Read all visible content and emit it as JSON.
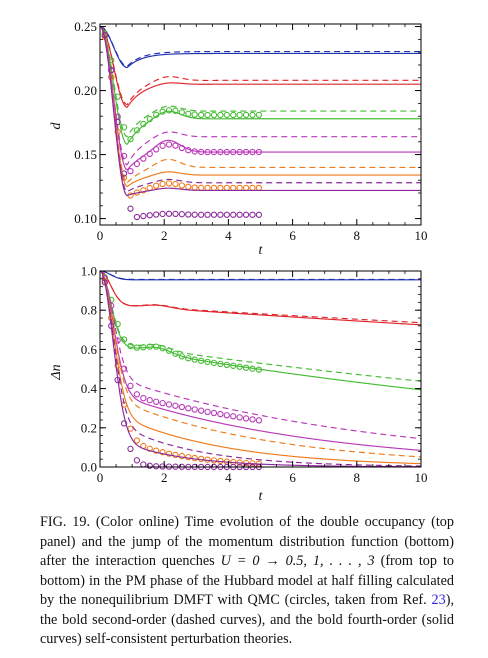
{
  "figure": {
    "caption": {
      "label": "FIG. 19.",
      "text_1": "(Color online) Time evolution of the double occupancy (top panel) and the jump of the momentum distribution function (bottom) after the interaction quenches ",
      "quench": "U = 0 → 0.5, 1, . . . , 3",
      "text_2": " (from top to bottom) in the PM phase of the Hubbard model at half filling calculated by the nonequilibrium DMFT with QMC (circles, taken from Ref. ",
      "ref": "23",
      "text_3": "), the bold second-order (dashed curves), and the bold fourth-order (solid curves) self-consistent perturbation theories."
    }
  },
  "colors": {
    "U0.5": "#1f2fb0",
    "U1": "#e0242a",
    "U1.5": "#44bb33",
    "U2": "#b838b8",
    "U2.5": "#f07a1a",
    "U3": "#8a2a9a",
    "axis": "#000000"
  },
  "chart_data": [
    {
      "type": "line",
      "panel": "top",
      "xlabel": "t",
      "ylabel": "d",
      "xlim": [
        0,
        10
      ],
      "ylim": [
        0.095,
        0.252
      ],
      "xticks": [
        0,
        2,
        4,
        6,
        8,
        10
      ],
      "xtick_labels": [
        "0",
        "2",
        "4",
        "6",
        "8",
        "10"
      ],
      "yticks": [
        0.1,
        0.15,
        0.2,
        0.25
      ],
      "ytick_labels": [
        "0.10",
        "0.15",
        "0.20",
        "0.25"
      ],
      "grid": false,
      "series": [
        {
          "color": "U0.5",
          "style": "solid",
          "start": 0.25,
          "final": 0.229,
          "dip": 0.218,
          "tmin": 0.85,
          "hump": 0
        },
        {
          "color": "U0.5",
          "style": "dashed",
          "start": 0.25,
          "final": 0.2305,
          "dip": 0.219,
          "tmin": 0.85,
          "hump": 0
        },
        {
          "color": "U1",
          "style": "solid",
          "start": 0.25,
          "final": 0.205,
          "dip": 0.187,
          "tmin": 0.85,
          "hump": 0.002
        },
        {
          "color": "U1",
          "style": "dashed",
          "start": 0.25,
          "final": 0.208,
          "dip": 0.189,
          "tmin": 0.85,
          "hump": 0.004
        },
        {
          "color": "U1.5",
          "style": "solid",
          "start": 0.25,
          "final": 0.178,
          "dip": 0.158,
          "tmin": 0.85,
          "hump": 0.007
        },
        {
          "color": "U1.5",
          "style": "dashed",
          "start": 0.25,
          "final": 0.184,
          "dip": 0.164,
          "tmin": 0.85,
          "hump": 0.005
        },
        {
          "color": "U1.5",
          "style": "circles",
          "start": 0.25,
          "final": 0.181,
          "dip": 0.162,
          "tmin": 0.95,
          "hump": 0.005,
          "tmax": 5.0
        },
        {
          "color": "U2",
          "style": "solid",
          "start": 0.25,
          "final": 0.152,
          "dip": 0.138,
          "tmin": 0.85,
          "hump": 0.01
        },
        {
          "color": "U2",
          "style": "dashed",
          "start": 0.25,
          "final": 0.164,
          "dip": 0.142,
          "tmin": 0.85,
          "hump": 0.005
        },
        {
          "color": "U2",
          "style": "circles",
          "start": 0.25,
          "final": 0.152,
          "dip": 0.137,
          "tmin": 0.95,
          "hump": 0.007,
          "tmax": 5.0
        },
        {
          "color": "U2.5",
          "style": "solid",
          "start": 0.25,
          "final": 0.134,
          "dip": 0.125,
          "tmin": 0.85,
          "hump": 0.003
        },
        {
          "color": "U2.5",
          "style": "dashed",
          "start": 0.25,
          "final": 0.14,
          "dip": 0.128,
          "tmin": 0.85,
          "hump": 0.007
        },
        {
          "color": "U2.5",
          "style": "circles",
          "start": 0.25,
          "final": 0.124,
          "dip": 0.118,
          "tmin": 0.95,
          "hump": 0.004,
          "tmax": 5.0
        },
        {
          "color": "U3",
          "style": "solid",
          "start": 0.25,
          "final": 0.122,
          "dip": 0.118,
          "tmin": 0.85,
          "hump": 0.002
        },
        {
          "color": "U3",
          "style": "dashed",
          "start": 0.25,
          "final": 0.128,
          "dip": 0.121,
          "tmin": 0.85,
          "hump": 0.003
        },
        {
          "color": "U3",
          "style": "circles",
          "start": 0.25,
          "final": 0.103,
          "dip": 0.101,
          "tmin": 1.1,
          "hump": 0.001,
          "tmax": 5.0
        }
      ]
    },
    {
      "type": "line",
      "panel": "bottom",
      "xlabel": "t",
      "ylabel": "Δn",
      "xlim": [
        0,
        10
      ],
      "ylim": [
        0,
        1.0
      ],
      "xticks": [
        0,
        2,
        4,
        6,
        8,
        10
      ],
      "xtick_labels": [
        "0",
        "2",
        "4",
        "6",
        "8",
        "10"
      ],
      "yticks": [
        0.0,
        0.2,
        0.4,
        0.6,
        0.8,
        1.0
      ],
      "ytick_labels": [
        "0.0",
        "0.2",
        "0.4",
        "0.6",
        "0.8",
        "1.0"
      ],
      "grid": false,
      "series": [
        {
          "color": "U0.5",
          "style": "solid",
          "tau": 0.45,
          "plateau": 0.955,
          "rate": 0.0,
          "hump": 0.0
        },
        {
          "color": "U0.5",
          "style": "dashed",
          "tau": 0.45,
          "plateau": 0.957,
          "rate": 0.0,
          "hump": 0.0
        },
        {
          "color": "U1",
          "style": "solid",
          "tau": 0.45,
          "plateau": 0.83,
          "rate": 0.0135,
          "hump": 0.015
        },
        {
          "color": "U1",
          "style": "dashed",
          "tau": 0.45,
          "plateau": 0.83,
          "rate": 0.012,
          "hump": 0.015
        },
        {
          "color": "U1.5",
          "style": "solid",
          "tau": 0.45,
          "plateau": 0.63,
          "rate": 0.047,
          "hump": 0.03
        },
        {
          "color": "U1.5",
          "style": "dashed",
          "tau": 0.45,
          "plateau": 0.64,
          "rate": 0.038,
          "hump": 0.025
        },
        {
          "color": "U1.5",
          "style": "circles",
          "tau": 0.5,
          "plateau": 0.63,
          "rate": 0.048,
          "hump": 0.035,
          "tmax": 5.0
        },
        {
          "color": "U2",
          "style": "solid",
          "tau": 0.55,
          "plateau": 0.4,
          "rate": 0.155,
          "hump": 0.0
        },
        {
          "color": "U2",
          "style": "dashed",
          "tau": 0.55,
          "plateau": 0.48,
          "rate": 0.12,
          "hump": 0.0
        },
        {
          "color": "U2",
          "style": "circles",
          "tau": 0.6,
          "plateau": 0.4,
          "rate": 0.105,
          "hump": 0.0,
          "tmax": 5.0
        },
        {
          "color": "U2.5",
          "style": "solid",
          "tau": 0.55,
          "plateau": 0.31,
          "rate": 0.29,
          "hump": 0.0
        },
        {
          "color": "U2.5",
          "style": "dashed",
          "tau": 0.55,
          "plateau": 0.38,
          "rate": 0.2,
          "hump": 0.0
        },
        {
          "color": "U2.5",
          "style": "circles",
          "tau": 0.6,
          "plateau": 0.2,
          "rate": 0.5,
          "hump": 0.0,
          "tmax": 5.0
        },
        {
          "color": "U3",
          "style": "solid",
          "tau": 0.55,
          "plateau": 0.18,
          "rate": 0.5,
          "hump": 0.0
        },
        {
          "color": "U3",
          "style": "dashed",
          "tau": 0.55,
          "plateau": 0.27,
          "rate": 0.4,
          "hump": 0.0
        },
        {
          "color": "U3",
          "style": "circles",
          "tau": 0.6,
          "plateau": 0.05,
          "rate": 1.5,
          "hump": 0.0,
          "tmax": 5.0
        }
      ]
    }
  ]
}
